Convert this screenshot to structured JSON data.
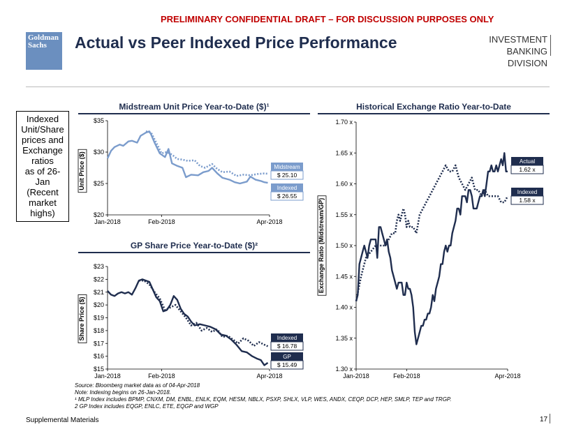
{
  "header": {
    "draft_banner": "PRELIMINARY CONFIDENTIAL DRAFT – FOR DISCUSSION PURPOSES ONLY",
    "logo_line1": "Goldman",
    "logo_line2": "Sachs",
    "title": "Actual vs Peer Indexed Price Performance",
    "division_line1": "INVESTMENT BANKING",
    "division_line2": "DIVISION"
  },
  "sidebox": {
    "lines": [
      "Indexed",
      "Unit/Share",
      "prices and",
      "Exchange",
      "ratios",
      "as of 26-",
      "Jan",
      "(Recent",
      "market",
      "highs)"
    ]
  },
  "footer": {
    "source": "Source:  Bloomberg market data as of 04-Apr-2018",
    "note": "Note: Indexing begins on 26-Jan-2018.",
    "fn1": "¹ MLP Index includes BPMP, CNXM, DM, ENBL, ENLK, EQM, HESM, NBLX, PSXP, SHLX, VLP, WES, ANDX, CEQP, DCP, HEP, SMLP, TEP and TRGP.",
    "fn2": "2 GP Index includes EQGP, ENLC, ETE, EQGP and WGP",
    "section": "Supplemental Materials",
    "page": "17"
  },
  "colors": {
    "dark_navy": "#1f2d4e",
    "light_blue": "#7b9ccc",
    "red": "#c00000"
  },
  "chart_data": [
    {
      "type": "line",
      "id": "midstream",
      "title": "Midstream Unit Price Year-to-Date ($)¹",
      "xlabel": "",
      "ylabel": "Unit Price ($)",
      "ylim": [
        20,
        35
      ],
      "yticks": [
        20,
        25,
        30,
        35
      ],
      "ytick_labels": [
        "$20",
        "$25",
        "$30",
        "$35"
      ],
      "xticks": [
        0,
        31,
        93
      ],
      "xtick_labels": [
        "Jan-2018",
        "Feb-2018",
        "Apr-2018"
      ],
      "xmax": 93,
      "series": [
        {
          "name": "Midstream",
          "style": "solid",
          "color": "#7b9ccc",
          "x": [
            0,
            2,
            4,
            7,
            9,
            12,
            14,
            17,
            19,
            22,
            24,
            25,
            27,
            30,
            33,
            35,
            37,
            40,
            43,
            45,
            48,
            52,
            55,
            58,
            60,
            63,
            66,
            70,
            73,
            76,
            80,
            82,
            85,
            88,
            90,
            92
          ],
          "y": [
            29.0,
            30.2,
            30.8,
            31.2,
            31.0,
            31.7,
            31.8,
            31.5,
            32.6,
            33.1,
            33.3,
            32.8,
            31.5,
            29.8,
            29.2,
            30.5,
            28.2,
            27.8,
            27.5,
            26.0,
            26.4,
            26.3,
            26.8,
            27.0,
            27.5,
            26.6,
            25.9,
            25.6,
            25.2,
            25.0,
            25.3,
            26.1,
            25.6,
            25.4,
            25.2,
            25.1
          ],
          "label_title": "Midstream",
          "label_value": "$ 25.10"
        },
        {
          "name": "Indexed",
          "style": "dotted",
          "color": "#7b9ccc",
          "x": [
            22,
            25,
            28,
            31,
            34,
            37,
            40,
            43,
            46,
            50,
            53,
            56,
            60,
            63,
            66,
            70,
            74,
            78,
            82,
            86,
            90,
            92
          ],
          "y": [
            33.3,
            33.1,
            31.5,
            29.8,
            30.0,
            29.6,
            28.9,
            28.8,
            28.6,
            28.7,
            27.8,
            27.5,
            28.1,
            27.3,
            26.8,
            26.9,
            26.2,
            26.4,
            26.3,
            26.5,
            26.6,
            26.55
          ],
          "label_title": "Indexed",
          "label_value": "$ 26.55"
        }
      ]
    },
    {
      "type": "line",
      "id": "gp",
      "title": "GP Share Price Year-to-Date ($)²",
      "xlabel": "",
      "ylabel": "Share Price ($)",
      "ylim": [
        15,
        23
      ],
      "yticks": [
        15,
        16,
        17,
        18,
        19,
        20,
        21,
        22,
        23
      ],
      "ytick_labels": [
        "$15",
        "$16",
        "$17",
        "$18",
        "$19",
        "$20",
        "$21",
        "$22",
        "$23"
      ],
      "xticks": [
        0,
        31,
        93
      ],
      "xtick_labels": [
        "Jan-2018",
        "Feb-2018",
        "Apr-2018"
      ],
      "xmax": 93,
      "series": [
        {
          "name": "GP",
          "style": "solid",
          "color": "#1f2d4e",
          "x": [
            0,
            2,
            4,
            6,
            8,
            10,
            12,
            14,
            16,
            18,
            20,
            22,
            24,
            26,
            28,
            30,
            32,
            34,
            36,
            38,
            40,
            42,
            44,
            46,
            48,
            50,
            53,
            56,
            59,
            62,
            65,
            68,
            71,
            74,
            77,
            80,
            83,
            86,
            88,
            90,
            92
          ],
          "y": [
            21.1,
            20.8,
            20.7,
            20.9,
            21.0,
            20.9,
            21.0,
            20.8,
            21.3,
            21.9,
            22.0,
            21.9,
            21.8,
            21.2,
            20.6,
            20.3,
            19.5,
            19.6,
            20.0,
            20.7,
            20.4,
            19.7,
            19.3,
            19.1,
            18.7,
            18.4,
            18.5,
            18.4,
            18.3,
            18.1,
            17.7,
            17.6,
            17.3,
            16.9,
            16.4,
            16.3,
            16.0,
            15.8,
            15.7,
            15.3,
            15.49
          ],
          "label_title": "GP",
          "label_value": "$ 15.49"
        },
        {
          "name": "Indexed",
          "style": "dotted",
          "color": "#1f2d4e",
          "x": [
            18,
            21,
            24,
            27,
            30,
            33,
            36,
            39,
            42,
            45,
            48,
            51,
            54,
            57,
            60,
            63,
            66,
            69,
            72,
            75,
            78,
            81,
            84,
            87,
            90,
            92
          ],
          "y": [
            21.9,
            21.9,
            21.6,
            21.0,
            20.5,
            19.6,
            19.8,
            20.0,
            19.5,
            19.0,
            18.4,
            18.6,
            18.0,
            18.2,
            17.9,
            18.1,
            17.5,
            17.6,
            17.3,
            17.0,
            17.4,
            17.2,
            16.8,
            17.1,
            16.9,
            16.78
          ],
          "label_title": "Indexed",
          "label_value": "$ 16.78"
        }
      ]
    },
    {
      "type": "line",
      "id": "exchange",
      "title": "Historical Exchange Ratio Year-to-Date",
      "xlabel": "",
      "ylabel": "Exchange Ratio (Midstream/GP)",
      "ylim": [
        1.3,
        1.7
      ],
      "yticks": [
        1.3,
        1.35,
        1.4,
        1.45,
        1.5,
        1.55,
        1.6,
        1.65,
        1.7
      ],
      "ytick_labels": [
        "1.30 x",
        "1.35 x",
        "1.40 x",
        "1.45 x",
        "1.50 x",
        "1.55 x",
        "1.60 x",
        "1.65 x",
        "1.70 x"
      ],
      "xticks": [
        0,
        31,
        93
      ],
      "xtick_labels": [
        "Jan-2018",
        "Feb-2018",
        "Apr-2018"
      ],
      "xmax": 93,
      "series": [
        {
          "name": "Actual",
          "style": "solid",
          "color": "#1f2d4e",
          "x": [
            0,
            1,
            2,
            3,
            4,
            5,
            6,
            7,
            8,
            9,
            10,
            11,
            12,
            13,
            14,
            15,
            16,
            17,
            18,
            19,
            20,
            21,
            22,
            23,
            24,
            25,
            26,
            27,
            28,
            29,
            30,
            31,
            32,
            33,
            34,
            35,
            36,
            37,
            38,
            39,
            40,
            41,
            42,
            43,
            44,
            45,
            46,
            47,
            48,
            49,
            50,
            51,
            52,
            53,
            54,
            55,
            56,
            57,
            58,
            59,
            60,
            61,
            62,
            63,
            64,
            65,
            66,
            67,
            68,
            69,
            70,
            71,
            72,
            73,
            74,
            75,
            76,
            77,
            78,
            79,
            80,
            81,
            82,
            83,
            84,
            85,
            86,
            87,
            88,
            89,
            90,
            91,
            92,
            93
          ],
          "y": [
            1.41,
            1.42,
            1.47,
            1.48,
            1.49,
            1.5,
            1.49,
            1.48,
            1.5,
            1.51,
            1.51,
            1.51,
            1.51,
            1.48,
            1.53,
            1.53,
            1.52,
            1.51,
            1.5,
            1.51,
            1.49,
            1.48,
            1.46,
            1.45,
            1.44,
            1.43,
            1.44,
            1.44,
            1.44,
            1.42,
            1.42,
            1.44,
            1.43,
            1.43,
            1.42,
            1.4,
            1.36,
            1.34,
            1.35,
            1.36,
            1.37,
            1.37,
            1.38,
            1.38,
            1.39,
            1.39,
            1.4,
            1.42,
            1.41,
            1.43,
            1.44,
            1.45,
            1.47,
            1.47,
            1.49,
            1.5,
            1.49,
            1.5,
            1.5,
            1.52,
            1.53,
            1.54,
            1.56,
            1.56,
            1.55,
            1.58,
            1.58,
            1.58,
            1.57,
            1.59,
            1.59,
            1.58,
            1.56,
            1.56,
            1.56,
            1.57,
            1.58,
            1.58,
            1.59,
            1.58,
            1.6,
            1.62,
            1.62,
            1.63,
            1.62,
            1.62,
            1.63,
            1.62,
            1.63,
            1.64,
            1.63,
            1.65,
            1.62,
            1.62
          ],
          "label_title": "Actual",
          "label_value": "1.62 x"
        },
        {
          "name": "Indexed",
          "style": "dotted",
          "color": "#1f2d4e",
          "x": [
            0,
            3,
            6,
            9,
            12,
            15,
            18,
            20,
            22,
            24,
            25,
            26,
            27,
            28,
            29,
            30,
            31,
            32,
            33,
            35,
            37,
            39,
            41,
            43,
            45,
            47,
            49,
            51,
            53,
            55,
            57,
            59,
            61,
            63,
            65,
            67,
            69,
            71,
            73,
            75,
            77,
            79,
            81,
            83,
            85,
            87,
            89,
            91,
            93
          ],
          "y": [
            1.41,
            1.45,
            1.48,
            1.49,
            1.5,
            1.5,
            1.5,
            1.51,
            1.52,
            1.52,
            1.54,
            1.55,
            1.54,
            1.55,
            1.56,
            1.55,
            1.53,
            1.54,
            1.53,
            1.53,
            1.52,
            1.55,
            1.56,
            1.57,
            1.58,
            1.59,
            1.6,
            1.61,
            1.62,
            1.63,
            1.62,
            1.62,
            1.63,
            1.61,
            1.6,
            1.59,
            1.6,
            1.61,
            1.59,
            1.59,
            1.58,
            1.59,
            1.58,
            1.58,
            1.58,
            1.58,
            1.57,
            1.57,
            1.58
          ],
          "label_title": "Indexed",
          "label_value": "1.58 x"
        }
      ]
    }
  ]
}
